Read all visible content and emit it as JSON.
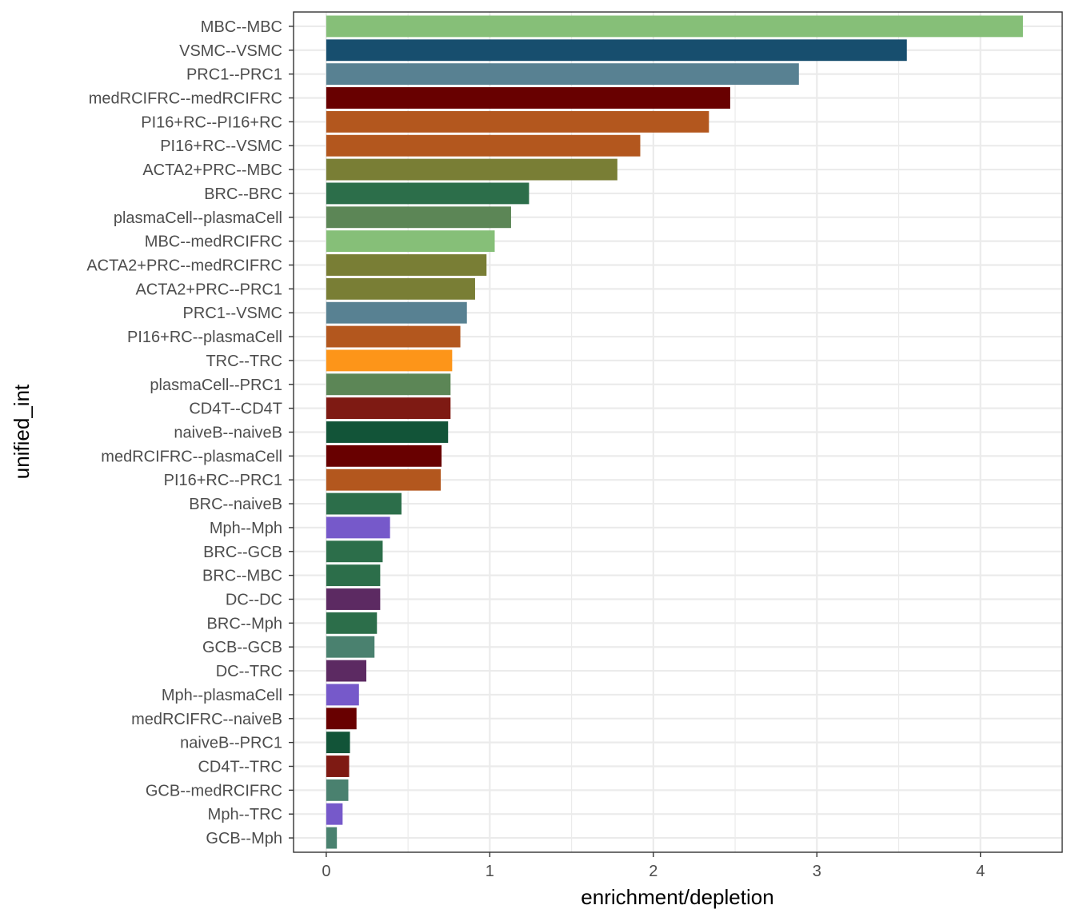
{
  "chart_data": {
    "type": "bar",
    "orientation": "horizontal",
    "xlabel": "enrichment/depletion",
    "ylabel": "unified_int",
    "xlim": [
      -0.2,
      4.5
    ],
    "x_ticks": [
      0,
      1,
      2,
      3,
      4
    ],
    "grid": true,
    "legend": "none",
    "categories": [
      "MBC--MBC",
      "VSMC--VSMC",
      "PRC1--PRC1",
      "medRCIFRC--medRCIFRC",
      "PI16+RC--PI16+RC",
      "PI16+RC--VSMC",
      "ACTA2+PRC--MBC",
      "BRC--BRC",
      "plasmaCell--plasmaCell",
      "MBC--medRCIFRC",
      "ACTA2+PRC--medRCIFRC",
      "ACTA2+PRC--PRC1",
      "PRC1--VSMC",
      "PI16+RC--plasmaCell",
      "TRC--TRC",
      "plasmaCell--PRC1",
      "CD4T--CD4T",
      "naiveB--naiveB",
      "medRCIFRC--plasmaCell",
      "PI16+RC--PRC1",
      "BRC--naiveB",
      "Mph--Mph",
      "BRC--GCB",
      "BRC--MBC",
      "DC--DC",
      "BRC--Mph",
      "GCB--GCB",
      "DC--TRC",
      "Mph--plasmaCell",
      "medRCIFRC--naiveB",
      "naiveB--PRC1",
      "CD4T--TRC",
      "GCB--medRCIFRC",
      "Mph--TRC",
      "GCB--Mph"
    ],
    "values": [
      4.26,
      3.55,
      2.89,
      2.47,
      2.34,
      1.92,
      1.78,
      1.24,
      1.13,
      1.03,
      0.98,
      0.91,
      0.86,
      0.82,
      0.77,
      0.76,
      0.76,
      0.745,
      0.705,
      0.7,
      0.46,
      0.39,
      0.345,
      0.33,
      0.33,
      0.31,
      0.295,
      0.245,
      0.2,
      0.185,
      0.145,
      0.14,
      0.135,
      0.1,
      0.065
    ],
    "colors": [
      "#86BF78",
      "#174E6E",
      "#588192",
      "#680000",
      "#B3571E",
      "#B3571E",
      "#797E35",
      "#2C6E4A",
      "#5C8656",
      "#86BF78",
      "#797E35",
      "#797E35",
      "#588192",
      "#B3571E",
      "#FD9519",
      "#5C8656",
      "#7E1A13",
      "#125438",
      "#680000",
      "#B3571E",
      "#2C6E4A",
      "#7659CA",
      "#2C6E4A",
      "#2C6E4A",
      "#5C2A62",
      "#2C6E4A",
      "#4A816F",
      "#5C2A62",
      "#7659CA",
      "#680000",
      "#125438",
      "#7E1A13",
      "#4A816F",
      "#7659CA",
      "#4A816F"
    ]
  }
}
